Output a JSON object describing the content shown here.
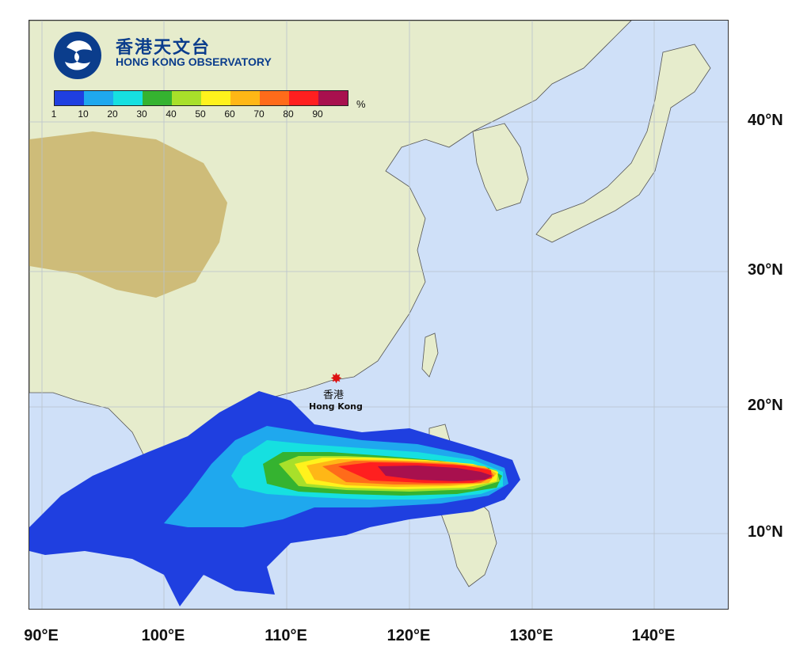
{
  "organization": {
    "name_cn": "香港天文台",
    "name_en": "HONG KONG OBSERVATORY"
  },
  "legend": {
    "unit": "%",
    "ticks": [
      "1",
      "10",
      "20",
      "30",
      "40",
      "50",
      "60",
      "70",
      "80",
      "90"
    ],
    "colors": [
      "#1f3fe0",
      "#1fa8ee",
      "#16e0e0",
      "#35b330",
      "#a8e02a",
      "#fff21c",
      "#ffb716",
      "#ff6b1a",
      "#ff1f1f",
      "#a8104e"
    ]
  },
  "map": {
    "lon_labels": [
      "90°E",
      "100°E",
      "110°E",
      "120°E",
      "130°E",
      "140°E"
    ],
    "lat_labels": [
      "40°N",
      "30°N",
      "20°N",
      "10°N"
    ],
    "ocean_color": "#cfe0f8",
    "land_color": "#e6eccc",
    "highland_color": "#c9b46a"
  },
  "hong_kong": {
    "label_cn": "香港",
    "label_en": "Hong Kong",
    "marker_color": "#d11111"
  },
  "probability_zones": [
    {
      "level": "1",
      "color": "#1f3fe0"
    },
    {
      "level": "10",
      "color": "#1fa8ee"
    },
    {
      "level": "20",
      "color": "#16e0e0"
    },
    {
      "level": "30",
      "color": "#35b330"
    },
    {
      "level": "40",
      "color": "#a8e02a"
    },
    {
      "level": "50",
      "color": "#fff21c"
    },
    {
      "level": "60",
      "color": "#ffb716"
    },
    {
      "level": "70",
      "color": "#ff6b1a"
    },
    {
      "level": "80",
      "color": "#ff1f1f"
    },
    {
      "level": "90",
      "color": "#a8104e"
    }
  ]
}
